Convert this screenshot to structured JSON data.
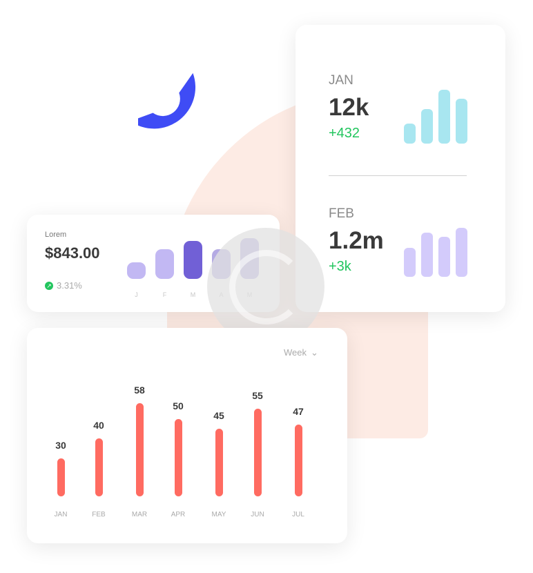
{
  "stats_card": {
    "items": [
      {
        "month": "JAN",
        "value": "12k",
        "delta": "+432",
        "bars": [
          28,
          47,
          74,
          62
        ],
        "color": "#a8e6f0"
      },
      {
        "month": "FEB",
        "value": "1.2m",
        "delta": "+3k",
        "bars": [
          40,
          60,
          55,
          67
        ],
        "color": "#d3cbfb"
      }
    ]
  },
  "lorem_card": {
    "label": "Lorem",
    "amount": "$843.00",
    "change": "3.31%",
    "bars": [
      {
        "label": "J",
        "value": 25,
        "color": "#c2b8f3"
      },
      {
        "label": "F",
        "value": 45,
        "color": "#c2b8f3"
      },
      {
        "label": "M",
        "value": 58,
        "color": "#7160d6"
      },
      {
        "label": "A",
        "value": 45,
        "color": "#b4aae3"
      },
      {
        "label": "M",
        "value": 62,
        "color": "#b4aae3"
      }
    ]
  },
  "chart_data": {
    "type": "bar",
    "period_selector": "Week",
    "categories": [
      "JAN",
      "FEB",
      "MAR",
      "APR",
      "MAY",
      "JUN",
      "JUL"
    ],
    "values": [
      30,
      40,
      58,
      50,
      45,
      55,
      47
    ],
    "color": "#ff6b61"
  }
}
